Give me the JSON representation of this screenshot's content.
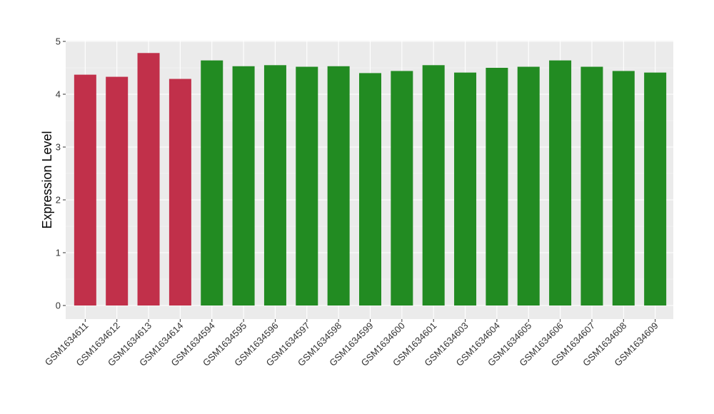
{
  "chart_data": {
    "type": "bar",
    "title": "",
    "xlabel": "",
    "ylabel": "Expression Level",
    "ylim": [
      0,
      5
    ],
    "yticks": [
      0,
      1,
      2,
      3,
      4,
      5
    ],
    "grid": true,
    "background": "#EBEBEB",
    "categories": [
      "GSM1634611",
      "GSM1634612",
      "GSM1634613",
      "GSM1634614",
      "GSM1634594",
      "GSM1634595",
      "GSM1634596",
      "GSM1634597",
      "GSM1634598",
      "GSM1634599",
      "GSM1634600",
      "GSM1634601",
      "GSM1634603",
      "GSM1634604",
      "GSM1634605",
      "GSM1634606",
      "GSM1634607",
      "GSM1634608",
      "GSM1634609"
    ],
    "values": [
      4.37,
      4.33,
      4.78,
      4.29,
      4.64,
      4.53,
      4.55,
      4.52,
      4.53,
      4.4,
      4.44,
      4.55,
      4.41,
      4.5,
      4.52,
      4.64,
      4.52,
      4.44,
      4.41
    ],
    "groups": [
      "red",
      "red",
      "red",
      "red",
      "green",
      "green",
      "green",
      "green",
      "green",
      "green",
      "green",
      "green",
      "green",
      "green",
      "green",
      "green",
      "green",
      "green",
      "green"
    ],
    "colors": {
      "red": "#C1304A",
      "green": "#228B22"
    }
  }
}
